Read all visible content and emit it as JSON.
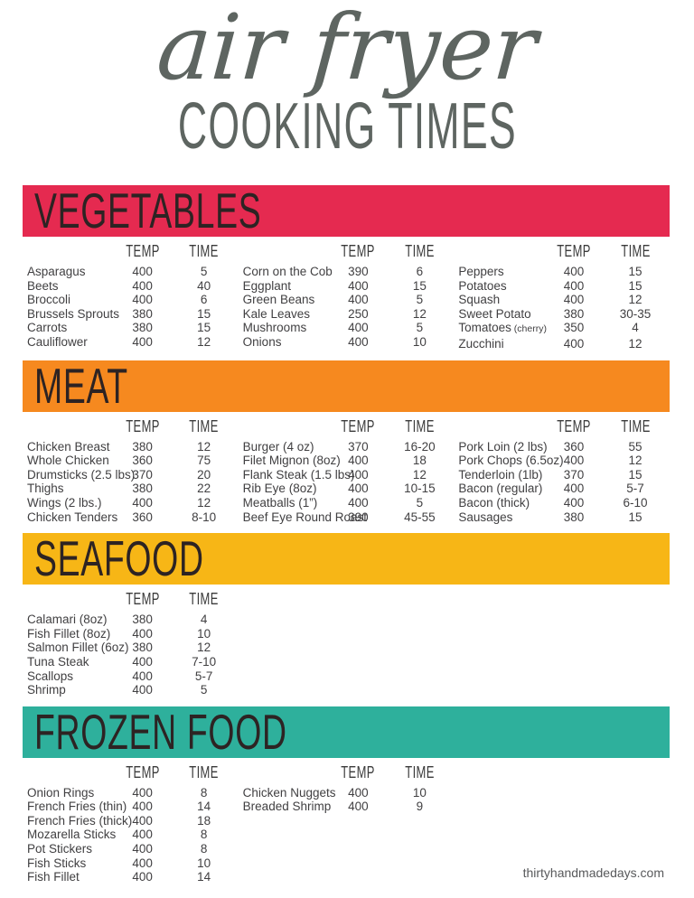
{
  "page": {
    "title_script": "air fryer",
    "title_caps": "COOKING TIMES",
    "footer": "thirtyhandmadedays.com"
  },
  "labels": {
    "temp": "TEMP",
    "time": "TIME"
  },
  "colors": {
    "vegetables": "#e52a50",
    "meat": "#f6891f",
    "seafood": "#f7b616",
    "frozen_food": "#2eb09c",
    "bar_text": "#2d2323",
    "title_gray": "#5e6561"
  },
  "sections": [
    {
      "id": "vegetables",
      "name": "VEGETABLES",
      "color": "#e52a50",
      "columns": [
        {
          "rows": [
            {
              "item": "Asparagus",
              "temp": "400",
              "time": "5"
            },
            {
              "item": "Beets",
              "temp": "400",
              "time": "40"
            },
            {
              "item": "Broccoli",
              "temp": "400",
              "time": "6"
            },
            {
              "item": "Brussels Sprouts",
              "temp": "380",
              "time": "15"
            },
            {
              "item": "Carrots",
              "temp": "380",
              "time": "15"
            },
            {
              "item": "Cauliflower",
              "temp": "400",
              "time": "12"
            }
          ]
        },
        {
          "rows": [
            {
              "item": "Corn on the Cob",
              "temp": "390",
              "time": "6"
            },
            {
              "item": "Eggplant",
              "temp": "400",
              "time": "15"
            },
            {
              "item": "Green Beans",
              "temp": "400",
              "time": "5"
            },
            {
              "item": "Kale Leaves",
              "temp": "250",
              "time": "12"
            },
            {
              "item": "Mushrooms",
              "temp": "400",
              "time": "5"
            },
            {
              "item": "Onions",
              "temp": "400",
              "time": "10"
            }
          ]
        },
        {
          "rows": [
            {
              "item": "Peppers",
              "temp": "400",
              "time": "15"
            },
            {
              "item": "Potatoes",
              "temp": "400",
              "time": "15"
            },
            {
              "item": "Squash",
              "temp": "400",
              "time": "12"
            },
            {
              "item": "Sweet Potato",
              "temp": "380",
              "time": "30-35"
            },
            {
              "item": "Tomatoes",
              "note": "(cherry)",
              "temp": "350",
              "time": "4"
            },
            {
              "item": "Zucchini",
              "temp": "400",
              "time": "12"
            }
          ]
        }
      ]
    },
    {
      "id": "meat",
      "name": "MEAT",
      "color": "#f6891f",
      "columns": [
        {
          "rows": [
            {
              "item": "Chicken Breast",
              "temp": "380",
              "time": "12"
            },
            {
              "item": "Whole Chicken",
              "temp": "360",
              "time": "75"
            },
            {
              "item": "Drumsticks (2.5 lbs)",
              "temp": "370",
              "time": "20"
            },
            {
              "item": "Thighs",
              "temp": "380",
              "time": "22"
            },
            {
              "item": "Wings (2 lbs.)",
              "temp": "400",
              "time": "12"
            },
            {
              "item": "Chicken Tenders",
              "temp": "360",
              "time": "8-10"
            }
          ]
        },
        {
          "rows": [
            {
              "item": "Burger (4 oz)",
              "temp": "370",
              "time": "16-20"
            },
            {
              "item": "Filet Mignon (8oz)",
              "temp": "400",
              "time": "18"
            },
            {
              "item": "Flank Steak (1.5 lbs)",
              "temp": "400",
              "time": "12"
            },
            {
              "item": "Rib Eye (8oz)",
              "temp": "400",
              "time": "10-15"
            },
            {
              "item": "Meatballs (1”)",
              "temp": "400",
              "time": "5"
            },
            {
              "item": "Beef Eye Round Roast",
              "temp": "390",
              "time": "45-55"
            }
          ]
        },
        {
          "rows": [
            {
              "item": "Pork Loin (2 lbs)",
              "temp": "360",
              "time": "55"
            },
            {
              "item": "Pork Chops (6.5oz)",
              "temp": "400",
              "time": "12"
            },
            {
              "item": "Tenderloin (1lb)",
              "temp": "370",
              "time": "15"
            },
            {
              "item": "Bacon (regular)",
              "temp": "400",
              "time": "5-7"
            },
            {
              "item": "Bacon (thick)",
              "temp": "400",
              "time": "6-10"
            },
            {
              "item": "Sausages",
              "temp": "380",
              "time": "15"
            }
          ]
        }
      ]
    },
    {
      "id": "seafood",
      "name": "SEAFOOD",
      "color": "#f7b616",
      "columns": [
        {
          "rows": [
            {
              "item": "Calamari (8oz)",
              "temp": "380",
              "time": "4"
            },
            {
              "item": "Fish Fillet (8oz)",
              "temp": "400",
              "time": "10"
            },
            {
              "item": "Salmon Fillet (6oz)",
              "temp": "380",
              "time": "12"
            },
            {
              "item": "Tuna Steak",
              "temp": "400",
              "time": "7-10"
            },
            {
              "item": "Scallops",
              "temp": "400",
              "time": "5-7"
            },
            {
              "item": "Shrimp",
              "temp": "400",
              "time": "5"
            }
          ]
        }
      ]
    },
    {
      "id": "frozen-food",
      "name": "FROZEN FOOD",
      "color": "#2eb09c",
      "columns": [
        {
          "rows": [
            {
              "item": "Onion Rings",
              "temp": "400",
              "time": "8"
            },
            {
              "item": "French Fries (thin)",
              "temp": "400",
              "time": "14"
            },
            {
              "item": "French Fries (thick)",
              "temp": "400",
              "time": "18"
            },
            {
              "item": "Mozarella Sticks",
              "temp": "400",
              "time": "8"
            },
            {
              "item": "Pot Stickers",
              "temp": "400",
              "time": "8"
            },
            {
              "item": "Fish Sticks",
              "temp": "400",
              "time": "10"
            },
            {
              "item": "Fish Fillet",
              "temp": "400",
              "time": "14"
            }
          ]
        },
        {
          "rows": [
            {
              "item": "Chicken Nuggets",
              "temp": "400",
              "time": "10"
            },
            {
              "item": "Breaded Shrimp",
              "temp": "400",
              "time": "9"
            }
          ]
        }
      ]
    }
  ]
}
